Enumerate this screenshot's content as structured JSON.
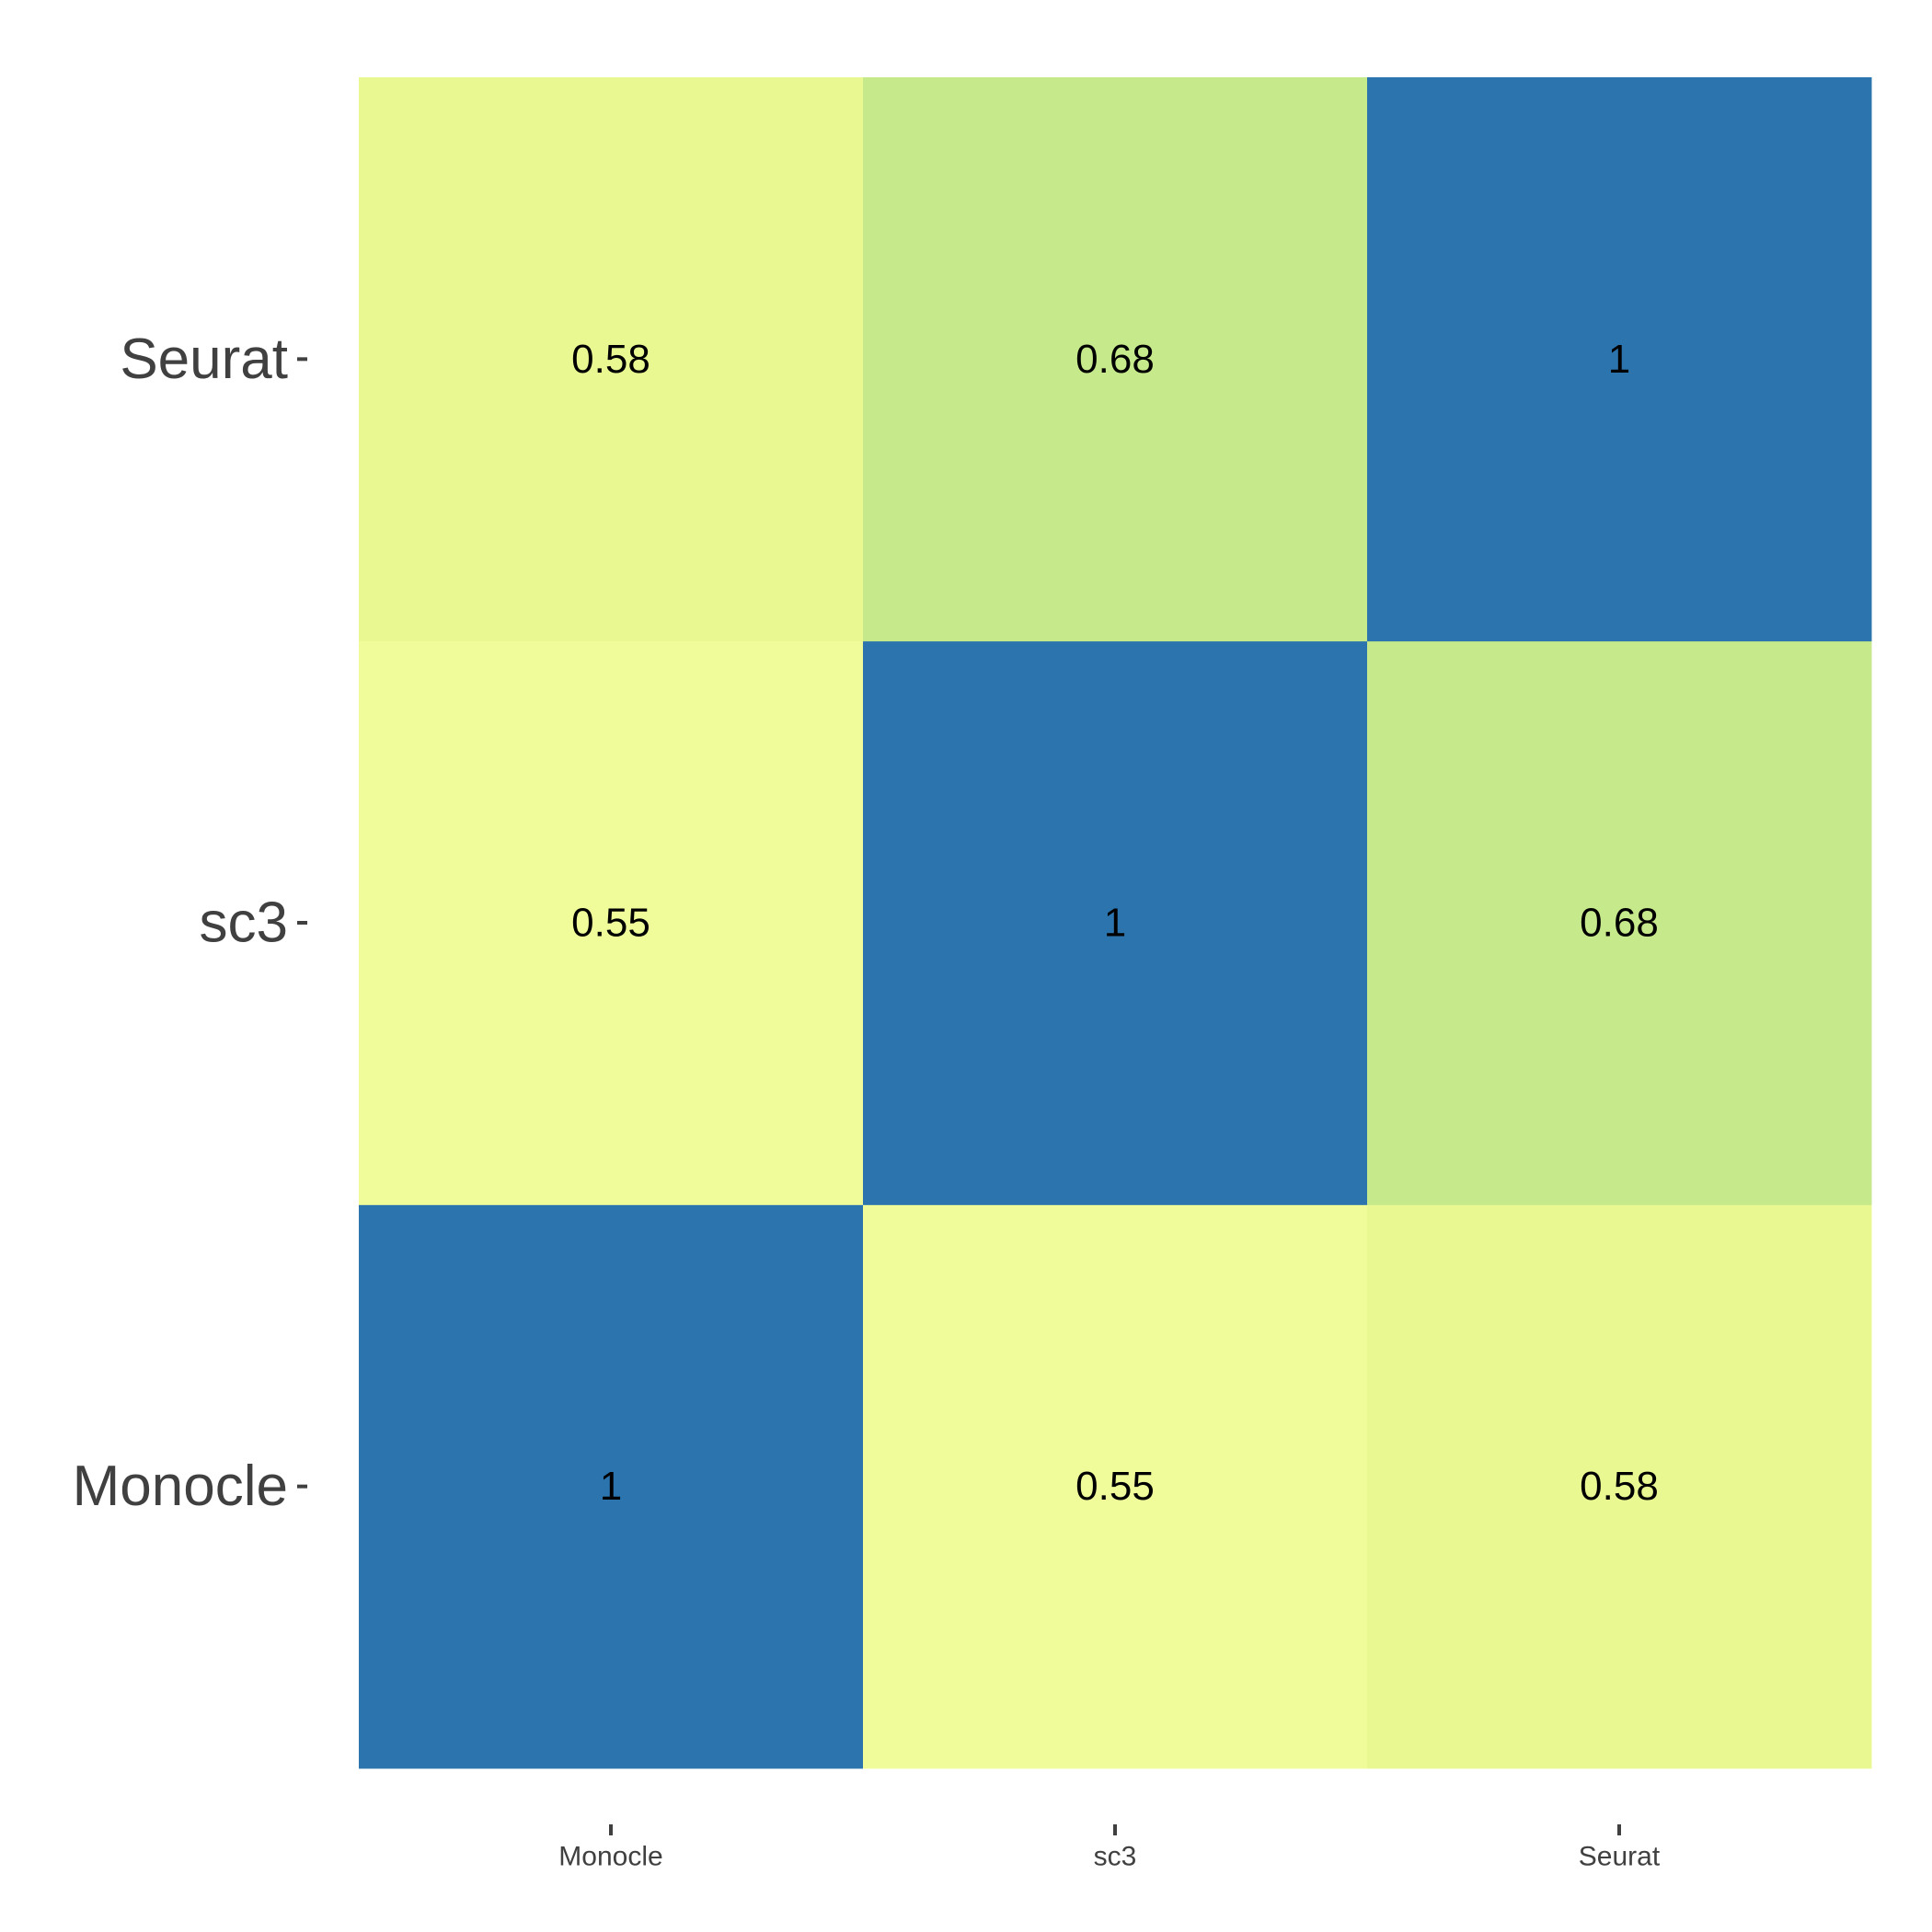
{
  "chart_data": {
    "type": "heatmap",
    "title": "",
    "xlabel": "",
    "ylabel": "",
    "x_categories": [
      "Monocle",
      "sc3",
      "Seurat"
    ],
    "y_categories": [
      "Monocle",
      "sc3",
      "Seurat"
    ],
    "values": [
      [
        1,
        0.55,
        0.58
      ],
      [
        0.55,
        1,
        0.68
      ],
      [
        0.58,
        0.68,
        1
      ]
    ],
    "value_labels": [
      [
        "1",
        "0.55",
        "0.58"
      ],
      [
        "0.55",
        "1",
        "0.68"
      ],
      [
        "0.58",
        "0.68",
        "1"
      ]
    ],
    "colors": {
      "1": "#2b74ae",
      "0.68": "#c6e98b",
      "0.58": "#eaf892",
      "0.55": "#f0fc9a"
    },
    "grid": false,
    "legend": "none"
  }
}
